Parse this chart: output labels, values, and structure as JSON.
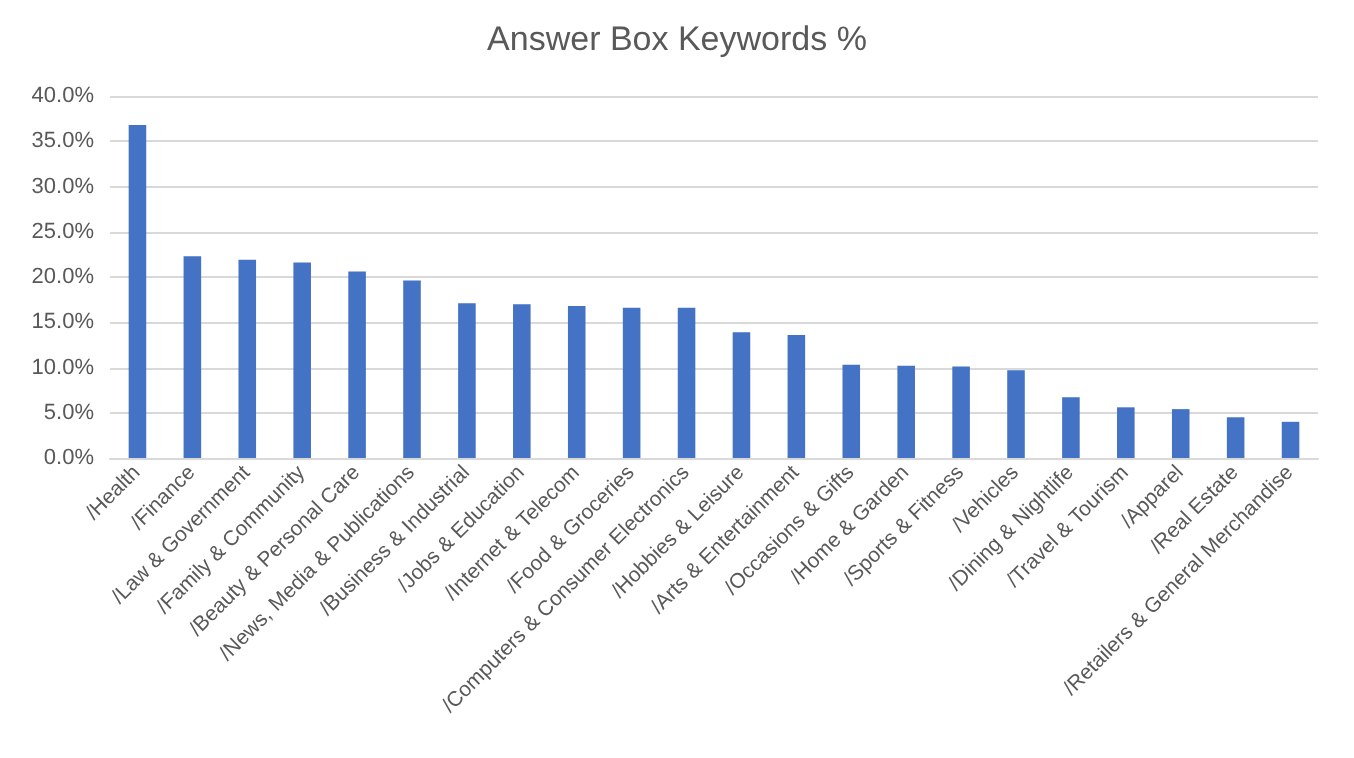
{
  "chart_data": {
    "type": "bar",
    "title": "Answer Box Keywords %",
    "categories": [
      "/Health",
      "/Finance",
      "/Law & Government",
      "/Family & Community",
      "/Beauty & Personal Care",
      "/News, Media & Publications",
      "/Business & Industrial",
      "/Jobs & Education",
      "/Internet & Telecom",
      "/Food & Groceries",
      "/Computers & Consumer Electronics",
      "/Hobbies & Leisure",
      "/Arts & Entertainment",
      "/Occasions & Gifts",
      "/Home & Garden",
      "/Sports & Fitness",
      "/Vehicles",
      "/Dining & Nightlife",
      "/Travel & Tourism",
      "/Apparel",
      "/Real Estate",
      "/Retailers & General Merchandise"
    ],
    "values": [
      36.8,
      22.3,
      21.9,
      21.6,
      20.6,
      19.6,
      17.1,
      17.0,
      16.8,
      16.6,
      16.6,
      13.9,
      13.6,
      10.3,
      10.2,
      10.1,
      9.7,
      6.7,
      5.6,
      5.4,
      4.5,
      4.0
    ],
    "color": "#4472c4",
    "ylim": [
      0,
      40
    ],
    "yticks": [
      {
        "value": 0,
        "label": "0.0%"
      },
      {
        "value": 5,
        "label": "5.0%"
      },
      {
        "value": 10,
        "label": "10.0%"
      },
      {
        "value": 15,
        "label": "15.0%"
      },
      {
        "value": 20,
        "label": "20.0%"
      },
      {
        "value": 25,
        "label": "25.0%"
      },
      {
        "value": 30,
        "label": "30.0%"
      },
      {
        "value": 35,
        "label": "35.0%"
      },
      {
        "value": 40,
        "label": "40.0%"
      }
    ],
    "grid": "y"
  }
}
